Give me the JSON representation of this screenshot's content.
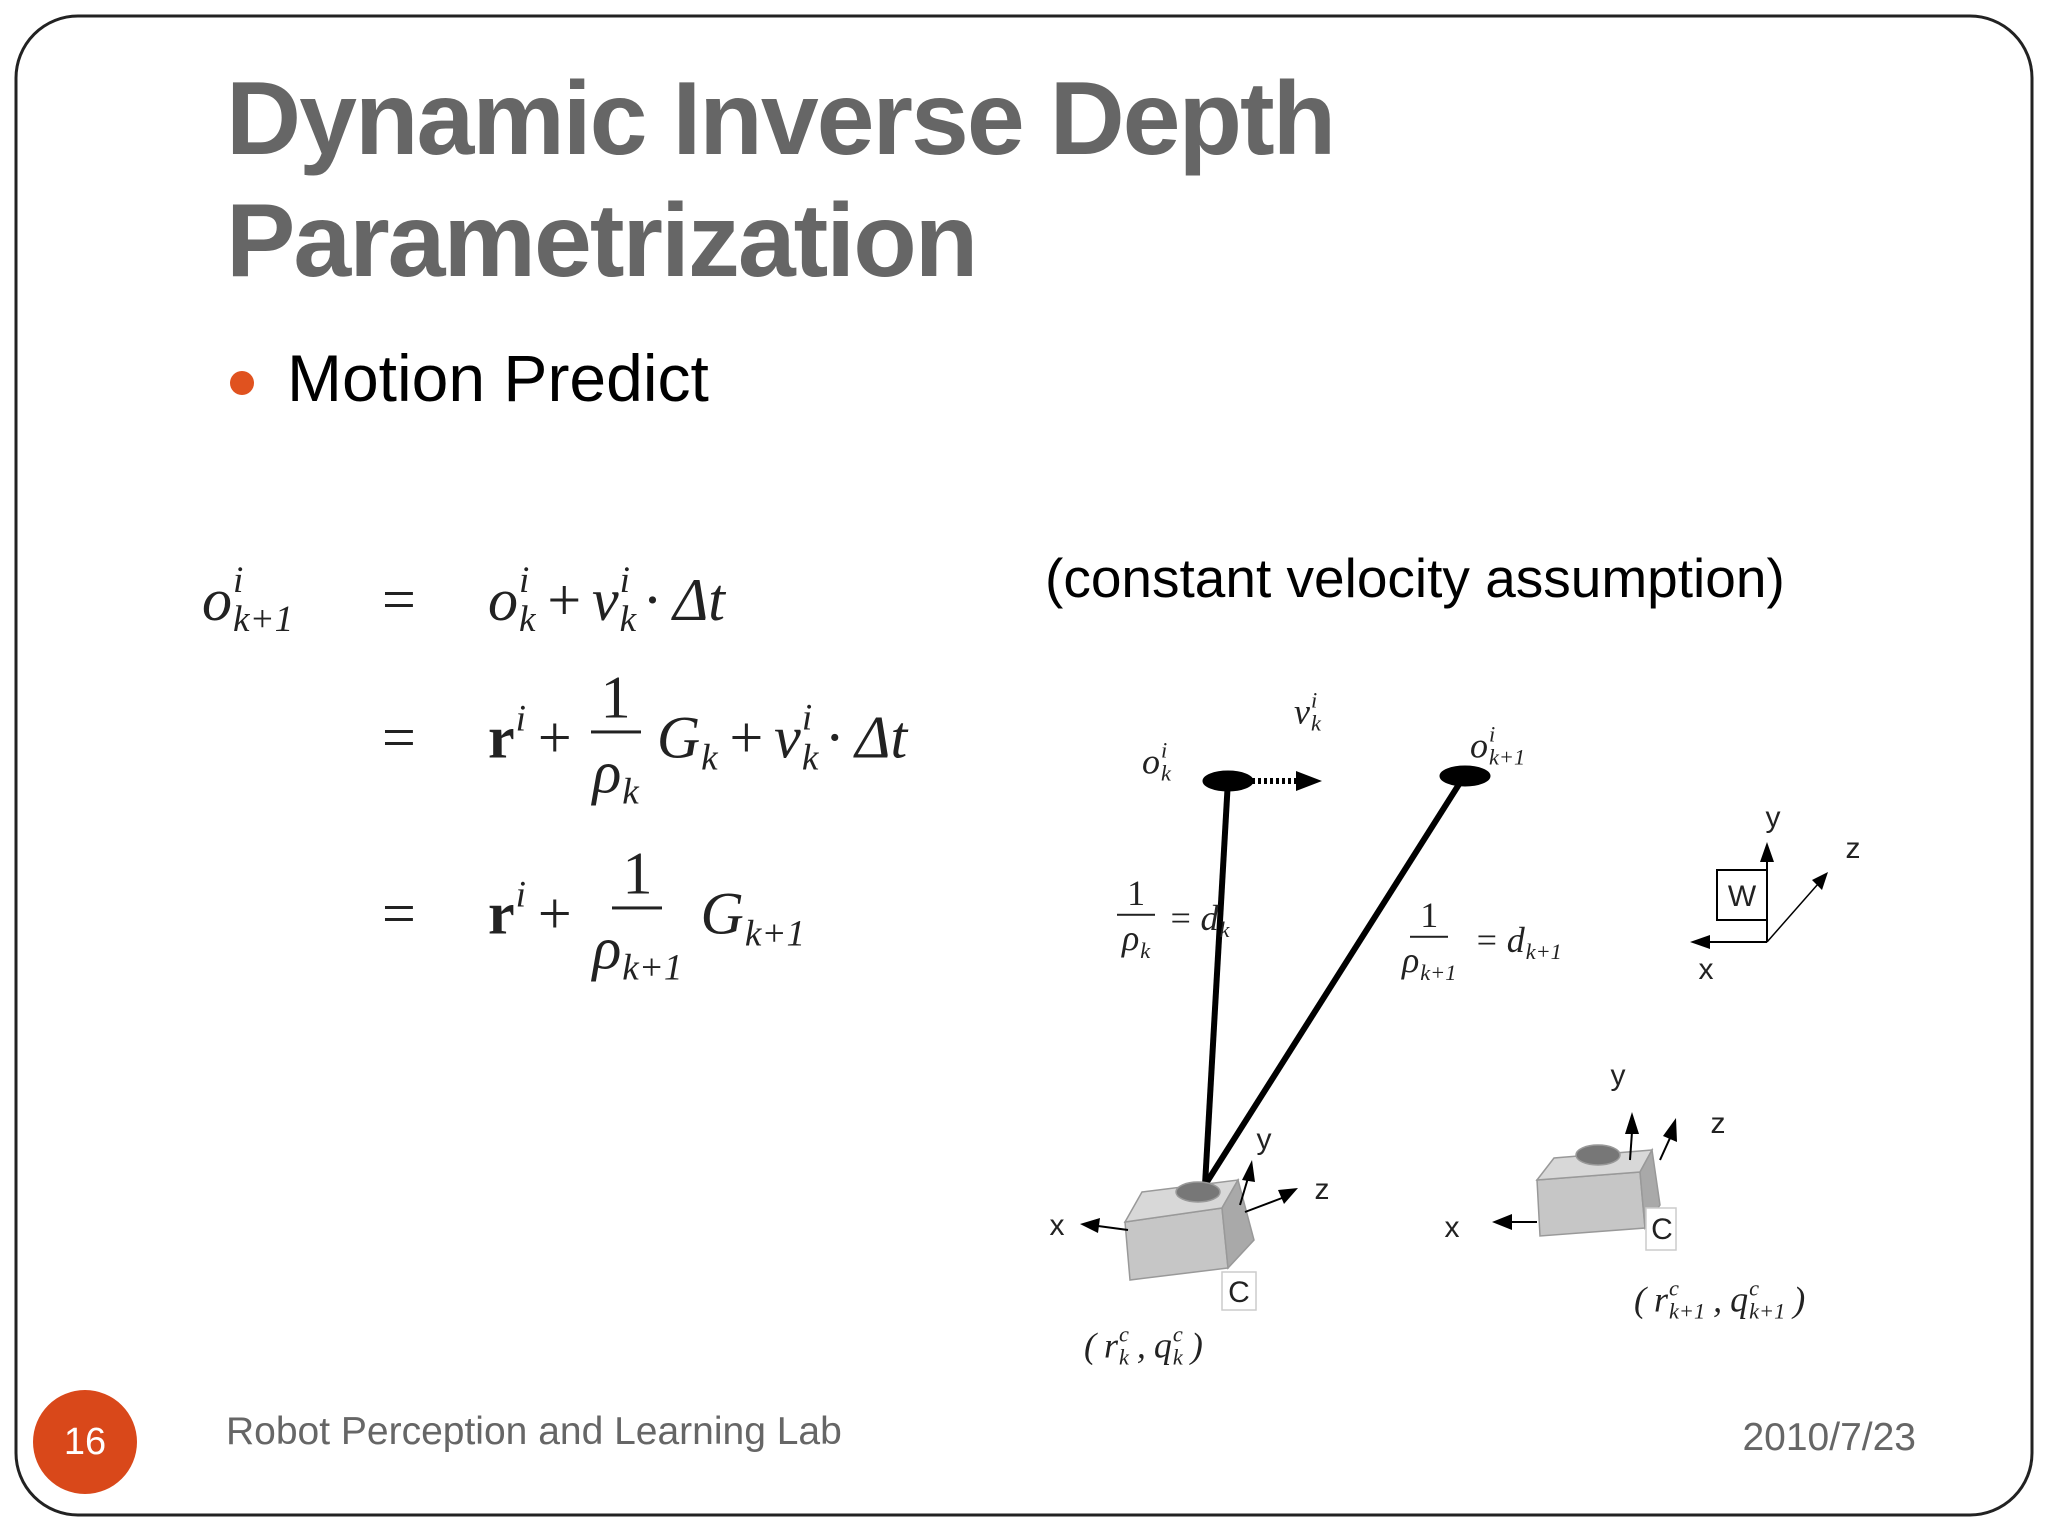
{
  "slide": {
    "title": "Dynamic Inverse Depth Parametrization",
    "bullet": "Motion Predict",
    "note": "(constant velocity assumption)",
    "equations": [
      {
        "lhs": [
          {
            "t": "o",
            "sup": "i",
            "sub": "k+1"
          }
        ],
        "eq": "=",
        "rhs": [
          {
            "t": "o",
            "sup": "i",
            "sub": "k"
          },
          {
            "t": "+"
          },
          {
            "t": "v",
            "sup": "i",
            "sub": "k"
          },
          {
            "t": "· Δt"
          }
        ]
      },
      {
        "eq": "=",
        "rhs": [
          {
            "t": "r",
            "sup": "i",
            "style": "bold"
          },
          {
            "t": "+"
          },
          {
            "num": "1",
            "den": {
              "t": "ρ",
              "sub": "k"
            }
          },
          {
            "t": "G",
            "sub": "k"
          },
          {
            "t": "+"
          },
          {
            "t": "v",
            "sup": "i",
            "sub": "k"
          },
          {
            "t": "· Δt"
          }
        ]
      },
      {
        "eq": "=",
        "rhs": [
          {
            "t": "r",
            "sup": "i",
            "style": "bold"
          },
          {
            "t": "+"
          },
          {
            "num": "1",
            "den": {
              "t": "ρ",
              "sub": "k+1"
            }
          },
          {
            "t": "G",
            "sub": "k+1"
          }
        ]
      }
    ],
    "diagram": {
      "labels": [
        [
          {
            "t": "o",
            "sup": "i",
            "sub": "k"
          }
        ],
        [
          {
            "t": "v",
            "sup": "i",
            "sub": "k"
          }
        ],
        [
          {
            "t": "o",
            "sup": "i",
            "sub": "k+1"
          }
        ],
        [
          {
            "num": "1",
            "den": {
              "t": "ρ",
              "sub": "k"
            }
          },
          {
            "t": "="
          },
          {
            "t": "d",
            "sub": "k"
          }
        ],
        [
          {
            "num": "1",
            "den": {
              "t": "ρ",
              "sub": "k+1"
            }
          },
          {
            "t": "="
          },
          {
            "t": "d",
            "sub": "k+1"
          }
        ],
        [
          {
            "t": "("
          },
          {
            "t": "r",
            "sup": "c",
            "sub": "k"
          },
          {
            "t": ","
          },
          {
            "t": "q",
            "sup": "c",
            "sub": "k"
          },
          {
            "t": ")"
          }
        ],
        [
          {
            "t": "("
          },
          {
            "t": "r",
            "sup": "c",
            "sub": "k+1"
          },
          {
            "t": ","
          },
          {
            "t": "q",
            "sup": "c",
            "sub": "k+1"
          },
          {
            "t": ")"
          }
        ]
      ],
      "axes": [
        "y",
        "z",
        "x",
        "W",
        "y",
        "z",
        "x",
        "C",
        "y",
        "z",
        "x",
        "C"
      ]
    },
    "footer": {
      "page": "16",
      "lab": "Robot Perception and Learning Lab",
      "date": "2010/7/23"
    }
  }
}
